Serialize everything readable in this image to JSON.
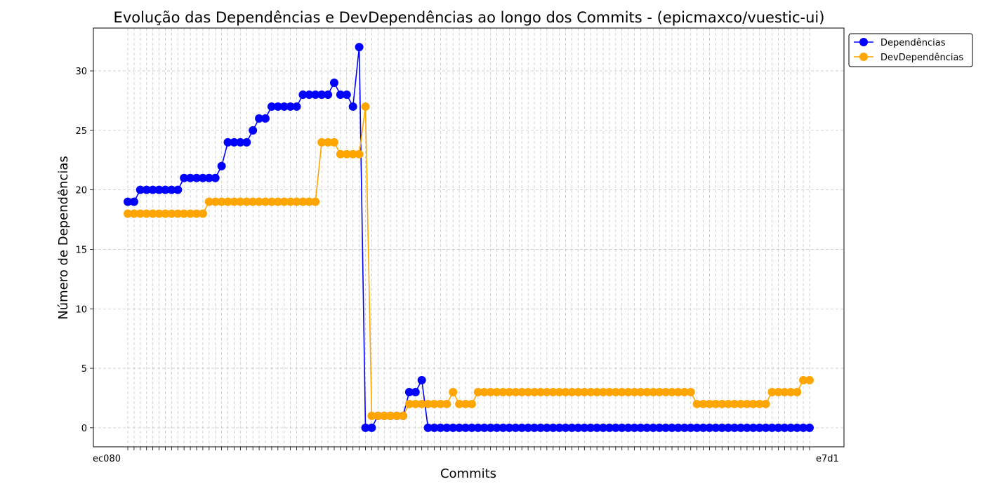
{
  "chart_data": {
    "type": "line",
    "title": "Evolução das Dependências e DevDependências ao longo dos Commits - (epicmaxco/vuestic-ui)",
    "xlabel": "Commits",
    "ylabel": "Número de Dependências",
    "ylim": [
      -1.6,
      33.6
    ],
    "yticks": [
      0,
      5,
      10,
      15,
      20,
      25,
      30
    ],
    "grid": true,
    "legend_position": "top-right (outside plot)",
    "x_count": 110,
    "xtick_first": "ec080",
    "xtick_last": "e7d1",
    "series": [
      {
        "name": "Dependências",
        "color": "#0000ff",
        "values": [
          19,
          19,
          20,
          20,
          20,
          20,
          20,
          20,
          20,
          21,
          21,
          21,
          21,
          21,
          21,
          22,
          24,
          24,
          24,
          24,
          25,
          26,
          26,
          27,
          27,
          27,
          27,
          27,
          28,
          28,
          28,
          28,
          28,
          29,
          28,
          28,
          27,
          32,
          0,
          0,
          1,
          1,
          1,
          1,
          1,
          3,
          3,
          4,
          0,
          0,
          0,
          0,
          0,
          0,
          0,
          0,
          0,
          0,
          0,
          0,
          0,
          0,
          0,
          0,
          0,
          0,
          0,
          0,
          0,
          0,
          0,
          0,
          0,
          0,
          0,
          0,
          0,
          0,
          0,
          0,
          0,
          0,
          0,
          0,
          0,
          0,
          0,
          0,
          0,
          0,
          0,
          0,
          0,
          0,
          0,
          0,
          0,
          0,
          0,
          0,
          0,
          0,
          0,
          0,
          0,
          0,
          0,
          0,
          0,
          0
        ]
      },
      {
        "name": "DevDependências",
        "color": "#ffa500",
        "values": [
          18,
          18,
          18,
          18,
          18,
          18,
          18,
          18,
          18,
          18,
          18,
          18,
          18,
          19,
          19,
          19,
          19,
          19,
          19,
          19,
          19,
          19,
          19,
          19,
          19,
          19,
          19,
          19,
          19,
          19,
          19,
          24,
          24,
          24,
          23,
          23,
          23,
          23,
          27,
          1,
          1,
          1,
          1,
          1,
          1,
          2,
          2,
          2,
          2,
          2,
          2,
          2,
          3,
          2,
          2,
          2,
          3,
          3,
          3,
          3,
          3,
          3,
          3,
          3,
          3,
          3,
          3,
          3,
          3,
          3,
          3,
          3,
          3,
          3,
          3,
          3,
          3,
          3,
          3,
          3,
          3,
          3,
          3,
          3,
          3,
          3,
          3,
          3,
          3,
          3,
          3,
          2,
          2,
          2,
          2,
          2,
          2,
          2,
          2,
          2,
          2,
          2,
          2,
          3,
          3,
          3,
          3,
          3,
          4,
          4
        ]
      }
    ]
  }
}
